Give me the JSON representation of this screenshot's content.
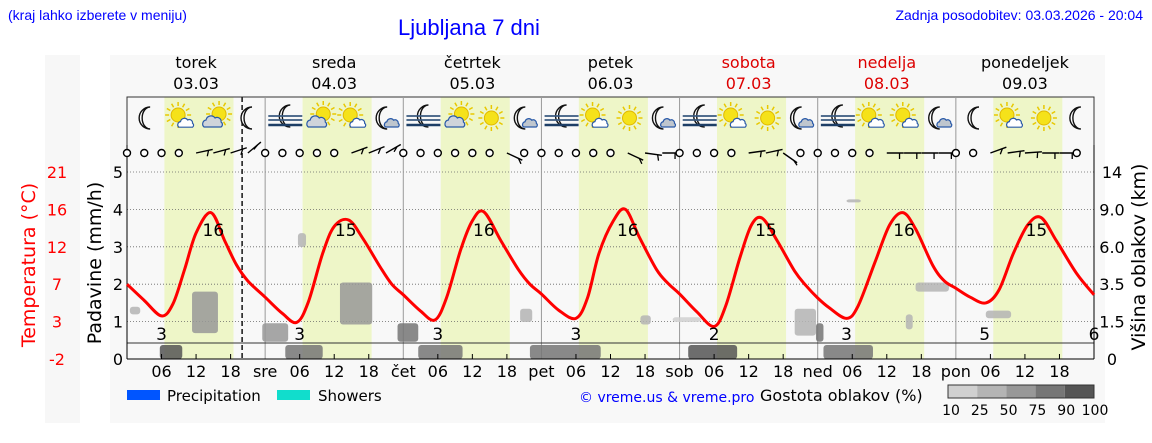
{
  "header": {
    "region_hint": "(kraj lahko izberete v meniju)",
    "title": "Ljubljana 7 dni",
    "updated": "Zadnja posodobitev: 03.03.2026 - 20:04"
  },
  "colors": {
    "weekday": "#000000",
    "weekend": "#dd0000",
    "temperature": "#ff0000",
    "daylight": "#eef6c8",
    "link": "#0000ff",
    "precipitation": "#0055ff",
    "showers": "#11ddcc"
  },
  "days": [
    {
      "name": "torek",
      "date": "03.03",
      "abbr": "",
      "weekend": false
    },
    {
      "name": "sreda",
      "date": "04.03",
      "abbr": "sre",
      "weekend": false
    },
    {
      "name": "četrtek",
      "date": "05.03",
      "abbr": "čet",
      "weekend": false
    },
    {
      "name": "petek",
      "date": "06.03",
      "abbr": "pet",
      "weekend": false
    },
    {
      "name": "sobota",
      "date": "07.03",
      "abbr": "sob",
      "weekend": true
    },
    {
      "name": "nedelja",
      "date": "08.03",
      "abbr": "ned",
      "weekend": true
    },
    {
      "name": "ponedeljek",
      "date": "09.03",
      "abbr": "pon",
      "weekend": false
    }
  ],
  "icons": [
    [
      "moon-icon",
      "sun-small-cloud-icon",
      "cloud-sun-icon",
      "moon-icon"
    ],
    [
      "fog-moon-icon",
      "cloud-sun-icon",
      "sun-small-cloud-icon",
      "moon-cloud-icon"
    ],
    [
      "fog-moon-icon",
      "cloud-sun-icon",
      "sun-icon",
      "moon-cloud-icon"
    ],
    [
      "fog-moon-icon",
      "sun-small-cloud-icon",
      "sun-icon",
      "moon-cloud-icon"
    ],
    [
      "fog-moon-icon",
      "sun-small-cloud-icon",
      "sun-icon",
      "moon-cloud-icon"
    ],
    [
      "fog-moon-icon",
      "sun-small-cloud-icon",
      "sun-small-cloud-icon",
      "moon-cloud-icon"
    ],
    [
      "moon-icon",
      "sun-small-cloud-icon",
      "sun-icon",
      "moon-icon"
    ]
  ],
  "chart_data": {
    "type": "line",
    "hour_ticks": [
      "06",
      "12",
      "18"
    ],
    "current_time_hour": 20,
    "left_axis": {
      "label": "Padavine (mm/h)",
      "ticks": [
        "0",
        "1",
        "2",
        "3",
        "4",
        "5"
      ],
      "range": [
        0,
        5.2
      ]
    },
    "temp_axis": {
      "label": "Temperatura (°C)",
      "ticks": [
        "21",
        "16",
        "12",
        "7",
        "3",
        "-2"
      ],
      "range": [
        -2,
        21
      ]
    },
    "right_axis": {
      "label": "Višina oblakov (km)",
      "ticks": [
        "14",
        "9.0",
        "6.0",
        "3.5",
        "1.5",
        "0"
      ]
    },
    "temperature": [
      [
        0,
        7.2
      ],
      [
        3,
        5.2
      ],
      [
        6,
        3.3
      ],
      [
        8,
        4.8
      ],
      [
        10,
        9
      ],
      [
        12,
        13.5
      ],
      [
        14.6,
        16
      ],
      [
        17,
        12.5
      ],
      [
        19,
        9.6
      ],
      [
        21,
        7.6
      ],
      [
        24,
        5.6
      ],
      [
        27,
        3.6
      ],
      [
        29.5,
        2.5
      ],
      [
        31.5,
        5
      ],
      [
        34,
        11
      ],
      [
        36,
        14.3
      ],
      [
        38.5,
        15.1
      ],
      [
        41,
        12.8
      ],
      [
        44,
        9.3
      ],
      [
        46,
        7.2
      ],
      [
        48,
        5.9
      ],
      [
        51,
        3.9
      ],
      [
        53.5,
        2.8
      ],
      [
        55.5,
        5.5
      ],
      [
        58,
        11.5
      ],
      [
        60,
        15
      ],
      [
        62,
        16.1
      ],
      [
        65,
        12.5
      ],
      [
        68,
        9
      ],
      [
        70,
        7.2
      ],
      [
        72,
        6
      ],
      [
        75,
        4
      ],
      [
        78,
        3
      ],
      [
        80,
        5.5
      ],
      [
        82,
        11
      ],
      [
        84.5,
        15
      ],
      [
        86.6,
        16.4
      ],
      [
        89,
        13
      ],
      [
        92,
        9
      ],
      [
        94,
        7.3
      ],
      [
        96,
        6
      ],
      [
        99,
        3.8
      ],
      [
        102,
        2
      ],
      [
        104,
        4.5
      ],
      [
        106.5,
        10.5
      ],
      [
        108.5,
        14.5
      ],
      [
        110.4,
        15.3
      ],
      [
        113,
        12.5
      ],
      [
        116,
        8.8
      ],
      [
        118,
        7
      ],
      [
        120,
        5.5
      ],
      [
        122,
        4.3
      ],
      [
        125,
        3
      ],
      [
        127,
        4.5
      ],
      [
        130,
        10
      ],
      [
        132.5,
        14.5
      ],
      [
        134.8,
        16
      ],
      [
        137,
        14
      ],
      [
        140,
        9.5
      ],
      [
        142,
        7.6
      ],
      [
        144,
        6.7
      ],
      [
        146.5,
        5.6
      ],
      [
        149.2,
        4.9
      ],
      [
        151.5,
        6.5
      ],
      [
        154,
        11
      ],
      [
        156.5,
        14.5
      ],
      [
        158.8,
        15.4
      ],
      [
        161.5,
        12.5
      ],
      [
        165,
        8.5
      ],
      [
        168,
        5.9
      ]
    ],
    "temperature_labels": [
      {
        "hour": 6,
        "value": "3"
      },
      {
        "hour": 15,
        "value": "16"
      },
      {
        "hour": 30,
        "value": "3"
      },
      {
        "hour": 38,
        "value": "15"
      },
      {
        "hour": 54,
        "value": "3"
      },
      {
        "hour": 62,
        "value": "16"
      },
      {
        "hour": 78,
        "value": "3"
      },
      {
        "hour": 87,
        "value": "16"
      },
      {
        "hour": 102,
        "value": "2"
      },
      {
        "hour": 111,
        "value": "15"
      },
      {
        "hour": 125,
        "value": "3"
      },
      {
        "hour": 135,
        "value": "16"
      },
      {
        "hour": 149,
        "value": "5"
      },
      {
        "hour": 158,
        "value": "15"
      },
      {
        "hour": 168,
        "value": "6"
      }
    ],
    "clouds": [
      {
        "from": 0.5,
        "to": 2.3,
        "base_km": 1.9,
        "top_km": 2.3,
        "density": 25
      },
      {
        "from": 11.3,
        "to": 15.8,
        "base_km": 1.05,
        "top_km": 3.1,
        "density": 50
      },
      {
        "from": 23.5,
        "to": 28,
        "base_km": 0.7,
        "top_km": 1.45,
        "density": 50
      },
      {
        "from": 29.7,
        "to": 31.1,
        "base_km": 6,
        "top_km": 7.1,
        "density": 25
      },
      {
        "from": 37,
        "to": 42.6,
        "base_km": 1.4,
        "top_km": 3.6,
        "density": 50
      },
      {
        "from": 47,
        "to": 50.6,
        "base_km": 0.7,
        "top_km": 1.45,
        "density": 75
      },
      {
        "from": 68.3,
        "to": 70.4,
        "base_km": 1.5,
        "top_km": 2.2,
        "density": 25
      },
      {
        "from": 89.2,
        "to": 91,
        "base_km": 1.4,
        "top_km": 1.85,
        "density": 25
      },
      {
        "from": 94.8,
        "to": 99.7,
        "base_km": 1.5,
        "top_km": 1.75,
        "density": 10
      },
      {
        "from": 116,
        "to": 119.7,
        "base_km": 0.95,
        "top_km": 2.2,
        "density": 25
      },
      {
        "from": 119.7,
        "to": 121,
        "base_km": 0.7,
        "top_km": 1.45,
        "density": 75
      },
      {
        "from": 125,
        "to": 127.5,
        "base_km": 10,
        "top_km": 10.3,
        "density": 25
      },
      {
        "from": 137,
        "to": 142.8,
        "base_km": 3.1,
        "top_km": 3.6,
        "density": 25
      },
      {
        "from": 135.3,
        "to": 136.5,
        "base_km": 1.2,
        "top_km": 1.9,
        "density": 25
      },
      {
        "from": 149.2,
        "to": 153.6,
        "base_km": 1.7,
        "top_km": 2.1,
        "density": 25
      },
      {
        "from": 5.7,
        "to": 9.6,
        "base_km": 0,
        "top_km": 0.6,
        "density": 90
      },
      {
        "from": 27.5,
        "to": 34,
        "base_km": 0,
        "top_km": 0.6,
        "density": 75
      },
      {
        "from": 50.6,
        "to": 58.3,
        "base_km": 0,
        "top_km": 0.6,
        "density": 75
      },
      {
        "from": 70,
        "to": 82.3,
        "base_km": 0,
        "top_km": 0.6,
        "density": 75
      },
      {
        "from": 97.5,
        "to": 106,
        "base_km": 0,
        "top_km": 0.6,
        "density": 90
      },
      {
        "from": 121,
        "to": 129.6,
        "base_km": 0,
        "top_km": 0.6,
        "density": 75
      }
    ],
    "wind": [
      "calm",
      "calm",
      "calm",
      "calm",
      -12,
      -15,
      -18,
      -40,
      "calm",
      "calm",
      "calm",
      "calm",
      "calm",
      -20,
      -22,
      -30,
      "calm",
      "calm",
      "calm",
      "calm",
      "calm",
      "calm",
      25,
      "calm",
      "calm",
      "calm",
      "calm",
      "calm",
      "calm",
      25,
      8,
      0,
      "calm",
      "calm",
      "calm",
      "calm",
      -8,
      -12,
      35,
      "calm",
      "calm",
      "calm",
      "calm",
      "calm",
      0,
      0,
      0,
      0,
      "calm",
      "calm",
      -20,
      -8,
      -4,
      0,
      0,
      "calm"
    ]
  },
  "legend": {
    "precipitation": "Precipitation",
    "showers": "Showers",
    "credit": "© vreme.us & vreme.pro",
    "cloud_title": "Gostota oblakov (%)",
    "cloud_levels": [
      "10",
      "25",
      "50",
      "75",
      "90",
      "100"
    ]
  }
}
